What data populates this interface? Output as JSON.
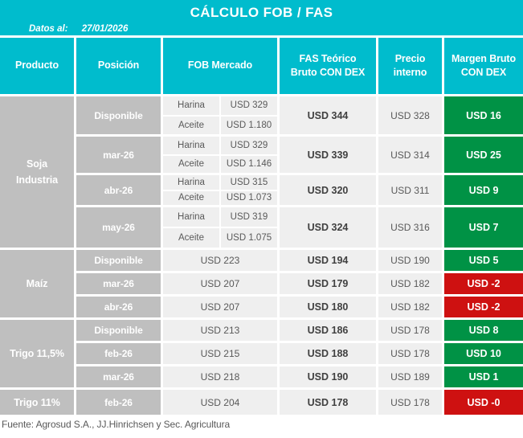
{
  "title": "CÁLCULO FOB / FAS",
  "datos": {
    "label": "Datos al:",
    "fecha": "27/01/2026"
  },
  "header": {
    "producto": "Producto",
    "posicion": "Posición",
    "fob": "FOB Mercado",
    "fas_line1": "FAS Teórico",
    "fas_line2": "Bruto CON DEX",
    "precio_line1": "Precio",
    "precio_line2": "interno",
    "margen_line1": "Margen Bruto",
    "margen_line2": "CON DEX"
  },
  "groups": [
    {
      "producto_lines": [
        "Soja",
        "Industria"
      ],
      "rows": [
        {
          "posicion": "Disponible",
          "fob_items": [
            {
              "label": "Harina",
              "value": "USD 329"
            },
            {
              "label": "Aceite",
              "value": "USD 1.180"
            }
          ],
          "fas": "USD 344",
          "precio": "USD 328",
          "margen": "USD 16",
          "margen_status": "positive"
        },
        {
          "posicion": "mar-26",
          "fob_items": [
            {
              "label": "Harina",
              "value": "USD 329"
            },
            {
              "label": "Aceite",
              "value": "USD 1.146"
            }
          ],
          "fas": "USD 339",
          "precio": "USD 314",
          "margen": "USD 25",
          "margen_status": "positive"
        },
        {
          "posicion": "abr-26",
          "fob_items": [
            {
              "label": "Harina",
              "value": "USD 315"
            },
            {
              "label": "Aceite",
              "value": "USD 1.073"
            }
          ],
          "fas": "USD 320",
          "precio": "USD 311",
          "margen": "USD 9",
          "margen_status": "positive"
        },
        {
          "posicion": "may-26",
          "fob_items": [
            {
              "label": "Harina",
              "value": "USD 319"
            },
            {
              "label": "Aceite",
              "value": "USD 1.075"
            }
          ],
          "fas": "USD 324",
          "precio": "USD 316",
          "margen": "USD 7",
          "margen_status": "positive"
        }
      ]
    },
    {
      "producto_lines": [
        "Maíz"
      ],
      "rows": [
        {
          "posicion": "Disponible",
          "fob_value": "USD 223",
          "fas": "USD 194",
          "precio": "USD 190",
          "margen": "USD 5",
          "margen_status": "positive"
        },
        {
          "posicion": "mar-26",
          "fob_value": "USD 207",
          "fas": "USD 179",
          "precio": "USD 182",
          "margen": "USD -2",
          "margen_status": "negative"
        },
        {
          "posicion": "abr-26",
          "fob_value": "USD 207",
          "fas": "USD 180",
          "precio": "USD 182",
          "margen": "USD -2",
          "margen_status": "negative"
        }
      ]
    },
    {
      "producto_lines": [
        "Trigo 11,5%"
      ],
      "rows": [
        {
          "posicion": "Disponible",
          "fob_value": "USD 213",
          "fas": "USD 186",
          "precio": "USD 178",
          "margen": "USD 8",
          "margen_status": "positive"
        },
        {
          "posicion": "feb-26",
          "fob_value": "USD 215",
          "fas": "USD 188",
          "precio": "USD 178",
          "margen": "USD 10",
          "margen_status": "positive"
        },
        {
          "posicion": "mar-26",
          "fob_value": "USD 218",
          "fas": "USD 190",
          "precio": "USD 189",
          "margen": "USD 1",
          "margen_status": "positive"
        }
      ]
    },
    {
      "producto_lines": [
        "Trigo 11%"
      ],
      "rows": [
        {
          "posicion": "feb-26",
          "fob_value": "USD 204",
          "fas": "USD 178",
          "precio": "USD 178",
          "margen": "USD -0",
          "margen_status": "negative"
        }
      ]
    }
  ],
  "footer": "Fuente: Agrosud S.A., JJ.Hinrichsen y Sec. Agricultura",
  "colors": {
    "accent": "#00bccd",
    "cell_gray": "#bfbfbf",
    "row_bg": "#efefef",
    "positive_green": "#009245",
    "negative_red": "#ce1111",
    "text_dark": "#404040",
    "text_gray": "#595959"
  }
}
